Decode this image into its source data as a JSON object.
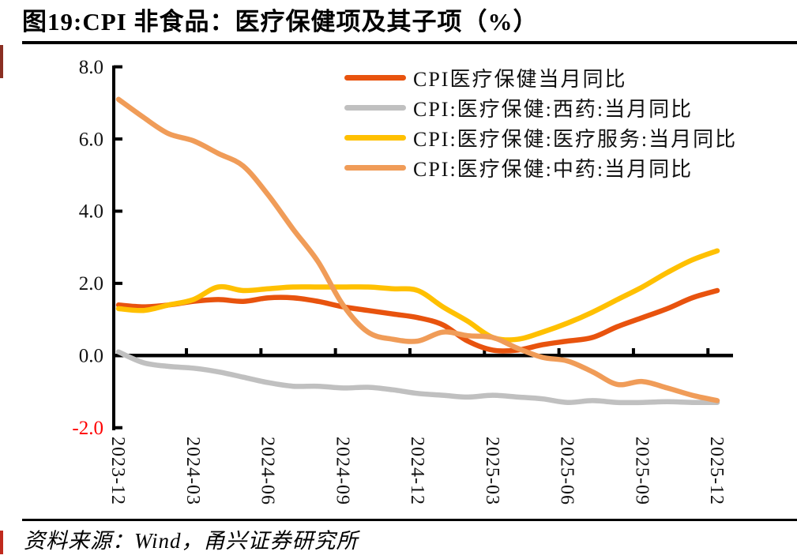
{
  "title": "图19:CPI 非食品：医疗保健项及其子项（%）",
  "source": "资料来源：Wind，甬兴证券研究所",
  "colors": {
    "axis": "#000000",
    "tick_label": "#111111",
    "negative_tick_label": "#FF0000",
    "series_main": "#E8530E",
    "series_western_medicine": "#C0C0C0",
    "series_medical_service": "#FFC000",
    "series_tcm": "#F09C58"
  },
  "chart_data": {
    "type": "line",
    "title": "图19:CPI 非食品：医疗保健项及其子项（%）",
    "x": [
      "2023-12",
      "2024-01",
      "2024-02",
      "2024-03",
      "2024-04",
      "2024-05",
      "2024-06",
      "2024-07",
      "2024-08",
      "2024-09",
      "2024-10",
      "2024-11",
      "2024-12",
      "2025-01",
      "2025-02",
      "2025-03",
      "2025-04",
      "2025-05",
      "2025-06",
      "2025-07",
      "2025-08",
      "2025-09",
      "2025-10",
      "2025-11",
      "2025-12"
    ],
    "series": [
      {
        "name": "CPI医疗保健当月同比",
        "color": "#E8530E",
        "values": [
          1.4,
          1.35,
          1.4,
          1.5,
          1.55,
          1.5,
          1.6,
          1.6,
          1.5,
          1.35,
          1.25,
          1.15,
          1.05,
          0.85,
          0.4,
          0.15,
          0.15,
          0.3,
          0.4,
          0.5,
          0.8,
          1.05,
          1.3,
          1.6,
          1.8
        ]
      },
      {
        "name": "CPI:医疗保健:西药:当月同比",
        "color": "#C0C0C0",
        "values": [
          0.1,
          -0.2,
          -0.3,
          -0.35,
          -0.45,
          -0.6,
          -0.75,
          -0.85,
          -0.85,
          -0.9,
          -0.88,
          -0.95,
          -1.05,
          -1.1,
          -1.15,
          -1.1,
          -1.15,
          -1.2,
          -1.3,
          -1.25,
          -1.3,
          -1.3,
          -1.28,
          -1.3,
          -1.3
        ]
      },
      {
        "name": "CPI:医疗保健:医疗服务:当月同比",
        "color": "#FFC000",
        "values": [
          1.3,
          1.25,
          1.4,
          1.55,
          1.9,
          1.8,
          1.85,
          1.9,
          1.9,
          1.9,
          1.9,
          1.85,
          1.8,
          1.35,
          0.95,
          0.5,
          0.45,
          0.65,
          0.9,
          1.2,
          1.55,
          1.9,
          2.3,
          2.65,
          2.9
        ]
      },
      {
        "name": "CPI:医疗保健:中药:当月同比",
        "color": "#F09C58",
        "values": [
          7.1,
          6.6,
          6.15,
          5.95,
          5.6,
          5.25,
          4.45,
          3.5,
          2.6,
          1.4,
          0.65,
          0.45,
          0.4,
          0.65,
          0.55,
          0.5,
          0.2,
          -0.05,
          -0.15,
          -0.45,
          -0.8,
          -0.72,
          -0.9,
          -1.1,
          -1.25
        ]
      }
    ],
    "ylim": [
      -2,
      8
    ],
    "yticks": [
      8,
      6,
      4,
      2,
      0,
      -2
    ],
    "ytick_labels": [
      "8.0",
      "6.0",
      "4.0",
      "2.0",
      "0.0",
      "-2.0"
    ],
    "xtick_labels": [
      "2023-12",
      "2024-03",
      "2024-06",
      "2024-09",
      "2024-12",
      "2025-03",
      "2025-06",
      "2025-09",
      "2025-12"
    ],
    "xtick_label_rotation_deg": 90,
    "grid": false,
    "legend_position": "upper-center",
    "negative_tick_label_color": "#FF0000",
    "smoothed_lines": true
  }
}
